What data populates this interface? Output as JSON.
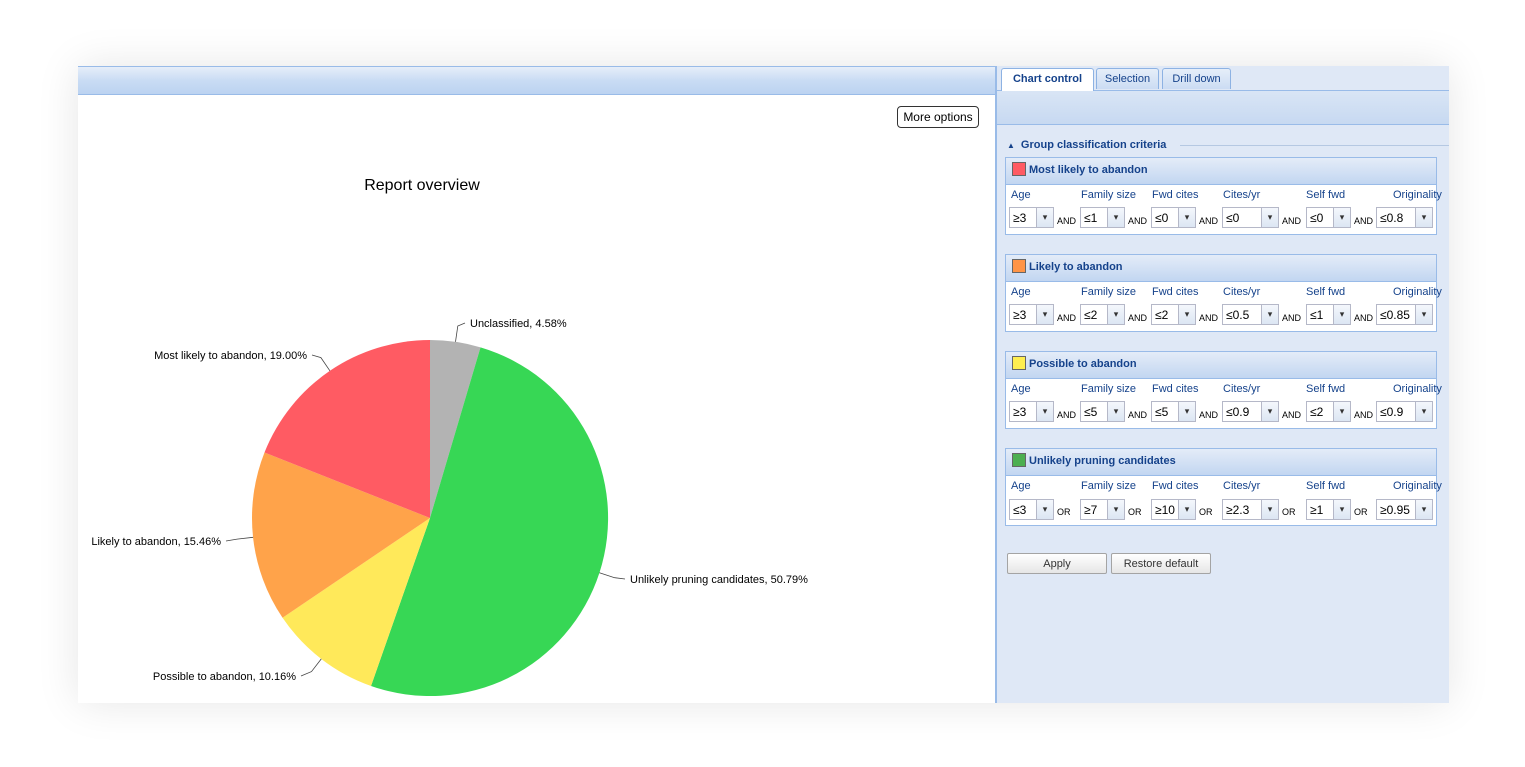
{
  "left_panel": {
    "more_options_label": "More options"
  },
  "chart_data": {
    "type": "pie",
    "title": "Report overview",
    "slices": [
      {
        "label": "Unclassified",
        "value": 4.58,
        "label_text": "Unclassified, 4.58%",
        "color": "#b3b3b3"
      },
      {
        "label": "Unlikely pruning candidates",
        "value": 50.79,
        "label_text": "Unlikely pruning candidates, 50.79%",
        "color": "#37d755"
      },
      {
        "label": "Possible to abandon",
        "value": 10.16,
        "label_text": "Possible to abandon, 10.16%",
        "color": "#ffe95a"
      },
      {
        "label": "Likely to abandon",
        "value": 15.46,
        "label_text": "Likely to abandon, 15.46%",
        "color": "#ffa34a"
      },
      {
        "label": "Most likely to abandon",
        "value": 19.0,
        "label_text": "Most likely to abandon, 19.00%",
        "color": "#ff5b63"
      }
    ]
  },
  "tabs": [
    {
      "label": "Chart control",
      "active": true
    },
    {
      "label": "Selection",
      "active": false
    },
    {
      "label": "Drill down",
      "active": false
    }
  ],
  "fieldset": {
    "legend": "Group classification criteria"
  },
  "groups": [
    {
      "title": "Most likely to abandon",
      "color": "#ff5b63",
      "operator": "AND",
      "fields": [
        {
          "label": "Age",
          "value": "≥3"
        },
        {
          "label": "Family size",
          "value": "≤1"
        },
        {
          "label": "Fwd cites",
          "value": "≤0"
        },
        {
          "label": "Cites/yr",
          "value": "≤0"
        },
        {
          "label": "Self fwd",
          "value": "≤0"
        },
        {
          "label": "Originality",
          "value": "≤0.8"
        }
      ]
    },
    {
      "title": "Likely to abandon",
      "color": "#ff9446",
      "operator": "AND",
      "fields": [
        {
          "label": "Age",
          "value": "≥3"
        },
        {
          "label": "Family size",
          "value": "≤2"
        },
        {
          "label": "Fwd cites",
          "value": "≤2"
        },
        {
          "label": "Cites/yr",
          "value": "≤0.5"
        },
        {
          "label": "Self fwd",
          "value": "≤1"
        },
        {
          "label": "Originality",
          "value": "≤0.85"
        }
      ]
    },
    {
      "title": "Possible to abandon",
      "color": "#ffee50",
      "operator": "AND",
      "fields": [
        {
          "label": "Age",
          "value": "≥3"
        },
        {
          "label": "Family size",
          "value": "≤5"
        },
        {
          "label": "Fwd cites",
          "value": "≤5"
        },
        {
          "label": "Cites/yr",
          "value": "≤0.9"
        },
        {
          "label": "Self fwd",
          "value": "≤2"
        },
        {
          "label": "Originality",
          "value": "≤0.9"
        }
      ]
    },
    {
      "title": "Unlikely pruning candidates",
      "color": "#4caf50",
      "operator": "OR",
      "fields": [
        {
          "label": "Age",
          "value": "≤3"
        },
        {
          "label": "Family size",
          "value": "≥7"
        },
        {
          "label": "Fwd cites",
          "value": "≥10"
        },
        {
          "label": "Cites/yr",
          "value": "≥2.3"
        },
        {
          "label": "Self fwd",
          "value": "≥1"
        },
        {
          "label": "Originality",
          "value": "≥0.95"
        }
      ]
    }
  ],
  "buttons": {
    "apply": "Apply",
    "restore": "Restore default"
  }
}
